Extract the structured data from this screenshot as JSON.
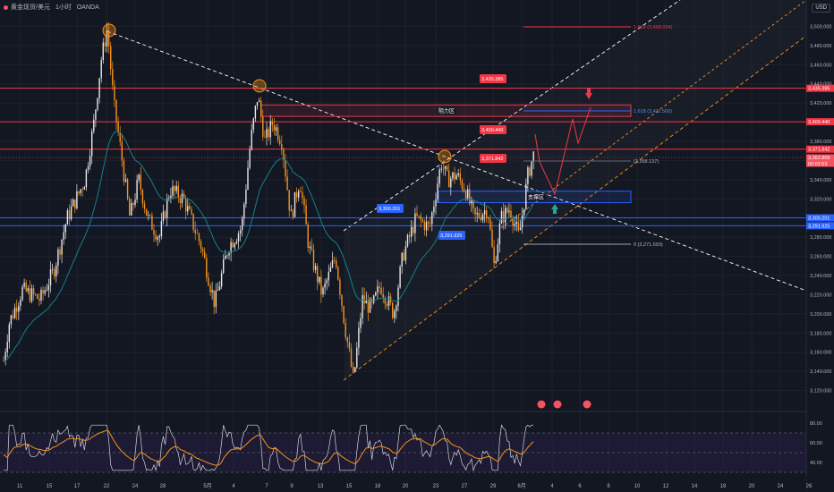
{
  "header": {
    "symbol": "黄金现货/美元",
    "interval": "1小时",
    "source": "OANDA",
    "currency": "USD"
  },
  "colors": {
    "bg": "#131722",
    "up": "#e8e8e8",
    "down": "#f7931a",
    "red": "#f23645",
    "blue": "#2962ff",
    "ema": "#14808a",
    "rsi": "#d1d4dc",
    "rsi_ma": "#f7931a",
    "dash": "#ffffff",
    "orange_dash": "#f7931a"
  },
  "chart_data": {
    "type": "candlestick",
    "ylim": [
      3100,
      3520
    ],
    "y_ticks": [
      "3,500.000",
      "3,480.000",
      "3,460.000",
      "3,440.000",
      "3,420.000",
      "3,400.000",
      "3,380.000",
      "3,360.000",
      "3,340.000",
      "3,320.000",
      "3,300.000",
      "3,280.000",
      "3,260.000",
      "3,240.000",
      "3,220.000",
      "3,200.000",
      "3,180.000",
      "3,160.000",
      "3,140.000",
      "3,120.000"
    ],
    "x_ticks": [
      "11",
      "15",
      "17",
      "22",
      "24",
      "28",
      "5月",
      "4",
      "7",
      "9",
      "13",
      "15",
      "18",
      "20",
      "23",
      "27",
      "29",
      "6月",
      "4",
      "6",
      "8",
      "10",
      "12",
      "14",
      "18",
      "20",
      "24",
      "26"
    ],
    "levels": [
      {
        "price": 3435.385,
        "label": "3,435.385",
        "type": "resistance"
      },
      {
        "price": 3400.44,
        "label": "3,400.440",
        "type": "resistance"
      },
      {
        "price": 3371.842,
        "label": "3,371.842",
        "type": "resistance"
      },
      {
        "price": 3300.201,
        "label": "3,300.201",
        "type": "support"
      },
      {
        "price": 3291.925,
        "label": "3,291.925",
        "type": "support"
      }
    ],
    "price_tags": [
      {
        "label": "3,371.842",
        "type": "resistance"
      },
      {
        "label": "3,362.809",
        "type": "current"
      },
      {
        "label": "02:01:53",
        "type": "countdown"
      }
    ],
    "zones": [
      {
        "label": "阻力区",
        "from": 3406,
        "to": 3418
      },
      {
        "label": "支撑区",
        "from": 3316,
        "to": 3328
      }
    ],
    "fib_labels": [
      "1.618 (3,498.004)",
      "1.618 (3,411.560)",
      "(3,358.137)",
      "0 (3,271.693)"
    ],
    "rsi": {
      "ylim": [
        30,
        90
      ],
      "ticks": [
        "80.00",
        "60.00",
        "40.00"
      ]
    }
  }
}
